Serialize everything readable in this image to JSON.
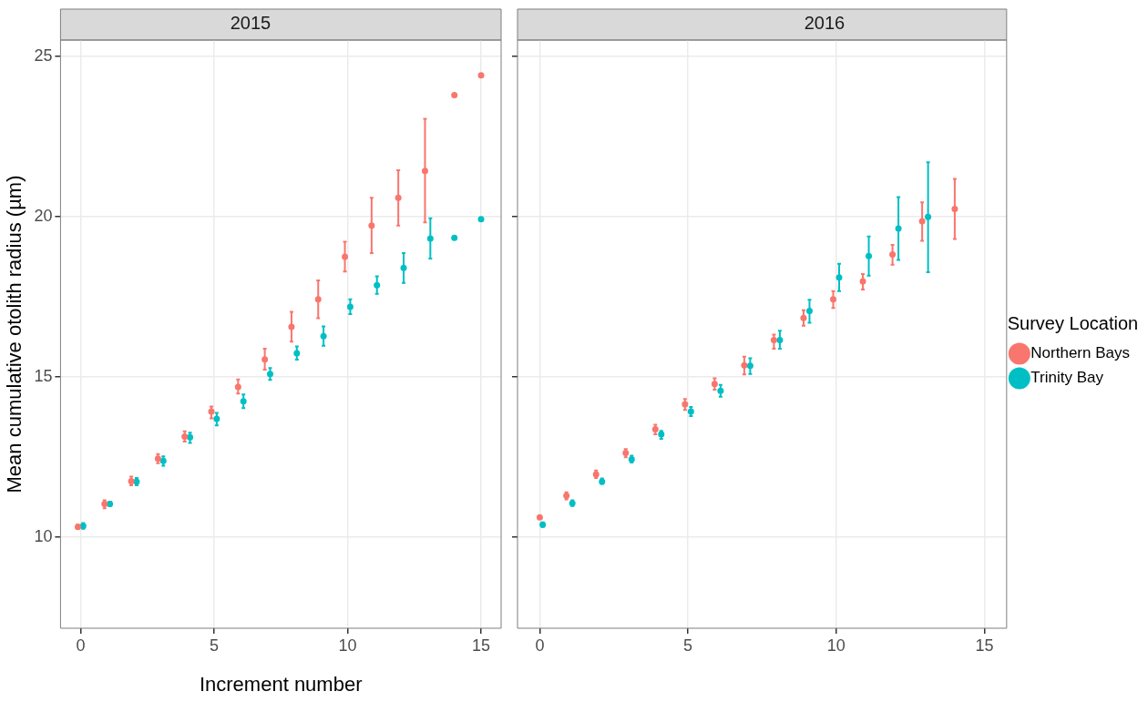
{
  "chart_data": [
    {
      "type": "scatter",
      "title": "2015",
      "xlabel": "Increment number",
      "ylabel": "Mean cumulative otolith radius (µm)",
      "xlim": [
        -0.75,
        15.75
      ],
      "ylim": [
        7.15,
        25.5
      ],
      "xticks": [
        0,
        5,
        10,
        15
      ],
      "yticks": [
        10,
        15,
        20,
        25
      ],
      "grid": true,
      "legend": false,
      "marker": "circle",
      "series": [
        {
          "color": "#f8766d",
          "x": [
            -0.1,
            0.9,
            1.9,
            2.9,
            3.9,
            4.9,
            5.9,
            6.9,
            7.9,
            8.9,
            9.9,
            10.9,
            11.9,
            12.9,
            14,
            15
          ],
          "values": [
            10.31,
            11.03,
            11.74,
            12.44,
            13.13,
            13.91,
            14.68,
            15.54,
            16.55,
            17.41,
            18.74,
            19.71,
            20.58,
            21.42,
            23.78,
            24.4
          ],
          "errors": [
            [
              10.27,
              10.38
            ],
            [
              10.89,
              11.14
            ],
            [
              11.61,
              11.88
            ],
            [
              12.3,
              12.58
            ],
            [
              12.97,
              13.29
            ],
            [
              13.7,
              14.07
            ],
            [
              14.47,
              14.91
            ],
            [
              15.22,
              15.87
            ],
            [
              16.09,
              17.02
            ],
            [
              16.82,
              18.0
            ],
            [
              18.28,
              19.21
            ],
            [
              18.85,
              20.58
            ],
            [
              19.71,
              21.44
            ],
            [
              19.81,
              23.04
            ],
            null,
            null
          ]
        },
        {
          "color": "#00bfc4",
          "x": [
            0.1,
            1.1,
            2.1,
            3.1,
            4.1,
            5.1,
            6.1,
            7.1,
            8.1,
            9.1,
            10.1,
            11.1,
            12.1,
            13.1,
            14,
            15
          ],
          "values": [
            10.34,
            11.03,
            11.72,
            12.37,
            13.11,
            13.68,
            14.23,
            15.08,
            15.73,
            16.26,
            17.18,
            17.85,
            18.39,
            19.31,
            19.33,
            19.91
          ],
          "errors": [
            [
              10.25,
              10.43
            ],
            [
              10.96,
              11.1
            ],
            [
              11.61,
              11.84
            ],
            [
              12.22,
              12.51
            ],
            [
              12.93,
              13.25
            ],
            [
              13.48,
              13.87
            ],
            [
              14.02,
              14.44
            ],
            [
              14.9,
              15.27
            ],
            [
              15.53,
              15.94
            ],
            [
              15.96,
              16.57
            ],
            [
              16.95,
              17.41
            ],
            [
              17.58,
              18.13
            ],
            [
              17.92,
              18.85
            ],
            [
              18.68,
              19.94
            ],
            null,
            null
          ]
        }
      ]
    },
    {
      "type": "scatter",
      "title": "2016",
      "xlim": [
        -0.75,
        15.75
      ],
      "ylim": [
        7.15,
        25.5
      ],
      "xticks": [
        0,
        5,
        10,
        15
      ],
      "yticks": [
        10,
        15,
        20,
        25
      ],
      "grid": true,
      "legend": "right",
      "legend_title": "Survey Location",
      "marker": "circle",
      "tick_labels": "x",
      "series": [
        {
          "name": "Northern Bays",
          "color": "#f8766d",
          "x": [
            0,
            0.9,
            1.9,
            2.9,
            3.9,
            4.9,
            5.9,
            6.9,
            7.9,
            8.9,
            9.9,
            10.9,
            11.9,
            12.9,
            14
          ],
          "values": [
            10.61,
            11.28,
            11.95,
            12.62,
            13.36,
            14.14,
            14.77,
            15.35,
            16.14,
            16.83,
            17.41,
            17.97,
            18.81,
            19.85,
            20.23
          ],
          "errors": [
            null,
            [
              11.17,
              11.39
            ],
            [
              11.84,
              12.07
            ],
            [
              12.48,
              12.74
            ],
            [
              13.2,
              13.5
            ],
            [
              13.96,
              14.3
            ],
            [
              14.59,
              14.95
            ],
            [
              15.07,
              15.62
            ],
            [
              15.87,
              16.31
            ],
            [
              16.59,
              17.07
            ],
            [
              17.14,
              17.67
            ],
            [
              17.72,
              18.2
            ],
            [
              18.49,
              19.11
            ],
            [
              19.24,
              20.44
            ],
            [
              19.29,
              21.17
            ]
          ]
        },
        {
          "name": "Trinity Bay",
          "color": "#00bfc4",
          "x": [
            0.1,
            1.1,
            2.1,
            3.1,
            4.1,
            5.1,
            6.1,
            7.1,
            8.1,
            9.1,
            10.1,
            11.1,
            12.1,
            13.1
          ],
          "values": [
            10.38,
            11.05,
            11.72,
            12.42,
            13.2,
            13.91,
            14.56,
            15.34,
            16.14,
            17.05,
            18.09,
            18.76,
            19.62,
            19.98
          ],
          "errors": [
            [
              10.31,
              10.45
            ],
            [
              10.96,
              11.14
            ],
            [
              11.65,
              11.82
            ],
            [
              12.32,
              12.53
            ],
            [
              13.06,
              13.31
            ],
            [
              13.77,
              14.05
            ],
            [
              14.37,
              14.74
            ],
            [
              15.08,
              15.57
            ],
            [
              15.87,
              16.43
            ],
            [
              16.68,
              17.4
            ],
            [
              17.67,
              18.52
            ],
            [
              18.15,
              19.37
            ],
            [
              18.64,
              20.6
            ],
            [
              18.26,
              21.69
            ]
          ]
        }
      ]
    }
  ]
}
